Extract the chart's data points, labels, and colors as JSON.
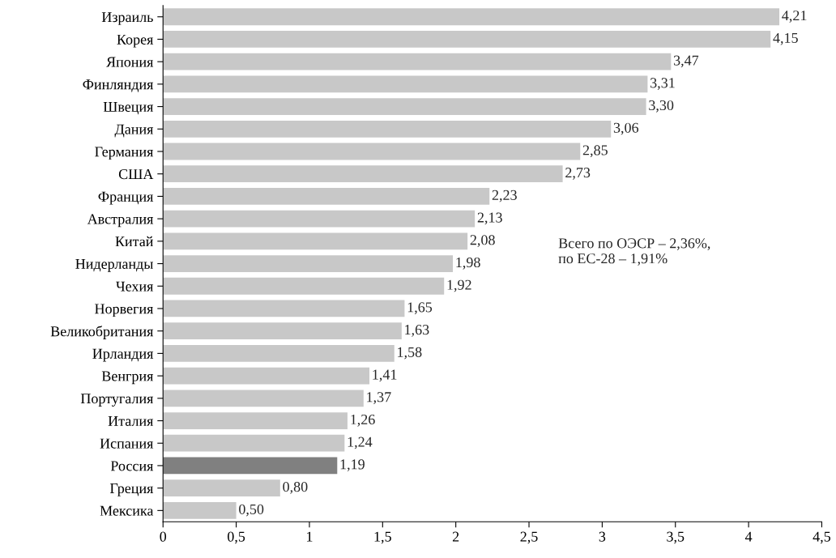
{
  "chart_data": {
    "type": "bar",
    "orientation": "horizontal",
    "categories": [
      "Израиль",
      "Корея",
      "Япония",
      "Финляндия",
      "Швеция",
      "Дания",
      "Германия",
      "США",
      "Франция",
      "Австралия",
      "Китай",
      "Нидерланды",
      "Чехия",
      "Норвегия",
      "Великобритания",
      "Ирландия",
      "Венгрия",
      "Португалия",
      "Италия",
      "Испания",
      "Россия",
      "Греция",
      "Мексика"
    ],
    "values": [
      4.21,
      4.15,
      3.47,
      3.31,
      3.3,
      3.06,
      2.85,
      2.73,
      2.23,
      2.13,
      2.08,
      1.98,
      1.92,
      1.65,
      1.63,
      1.58,
      1.41,
      1.37,
      1.26,
      1.24,
      1.19,
      0.8,
      0.5
    ],
    "value_labels": [
      "4,21",
      "4,15",
      "3,47",
      "3,31",
      "3,30",
      "3,06",
      "2,85",
      "2,73",
      "2,23",
      "2,13",
      "2,08",
      "1,98",
      "1,92",
      "1,65",
      "1,63",
      "1,58",
      "1,41",
      "1,37",
      "1,26",
      "1,24",
      "1,19",
      "0,80",
      "0,50"
    ],
    "colors": [
      "#c8c8c8",
      "#c8c8c8",
      "#c8c8c8",
      "#c8c8c8",
      "#c8c8c8",
      "#c8c8c8",
      "#c8c8c8",
      "#c8c8c8",
      "#c8c8c8",
      "#c8c8c8",
      "#c8c8c8",
      "#c8c8c8",
      "#c8c8c8",
      "#c8c8c8",
      "#c8c8c8",
      "#c8c8c8",
      "#c8c8c8",
      "#c8c8c8",
      "#c8c8c8",
      "#c8c8c8",
      "#808080",
      "#c8c8c8",
      "#c8c8c8"
    ],
    "xlim": [
      0,
      4.5
    ],
    "xticks": [
      0,
      {
        "value": 0.5,
        "label": "0,5"
      },
      1,
      {
        "value": 1.5,
        "label": "1,5"
      },
      2,
      {
        "value": 2.5,
        "label": "2,5"
      },
      3,
      {
        "value": 3.5,
        "label": "3,5"
      },
      4,
      {
        "value": 4.5,
        "label": "4,5"
      }
    ],
    "grid": false,
    "legend": false,
    "annotations": [
      "Всего по ОЭСР – 2,36%,\nпо ЕС-28 – 1,91%"
    ]
  }
}
